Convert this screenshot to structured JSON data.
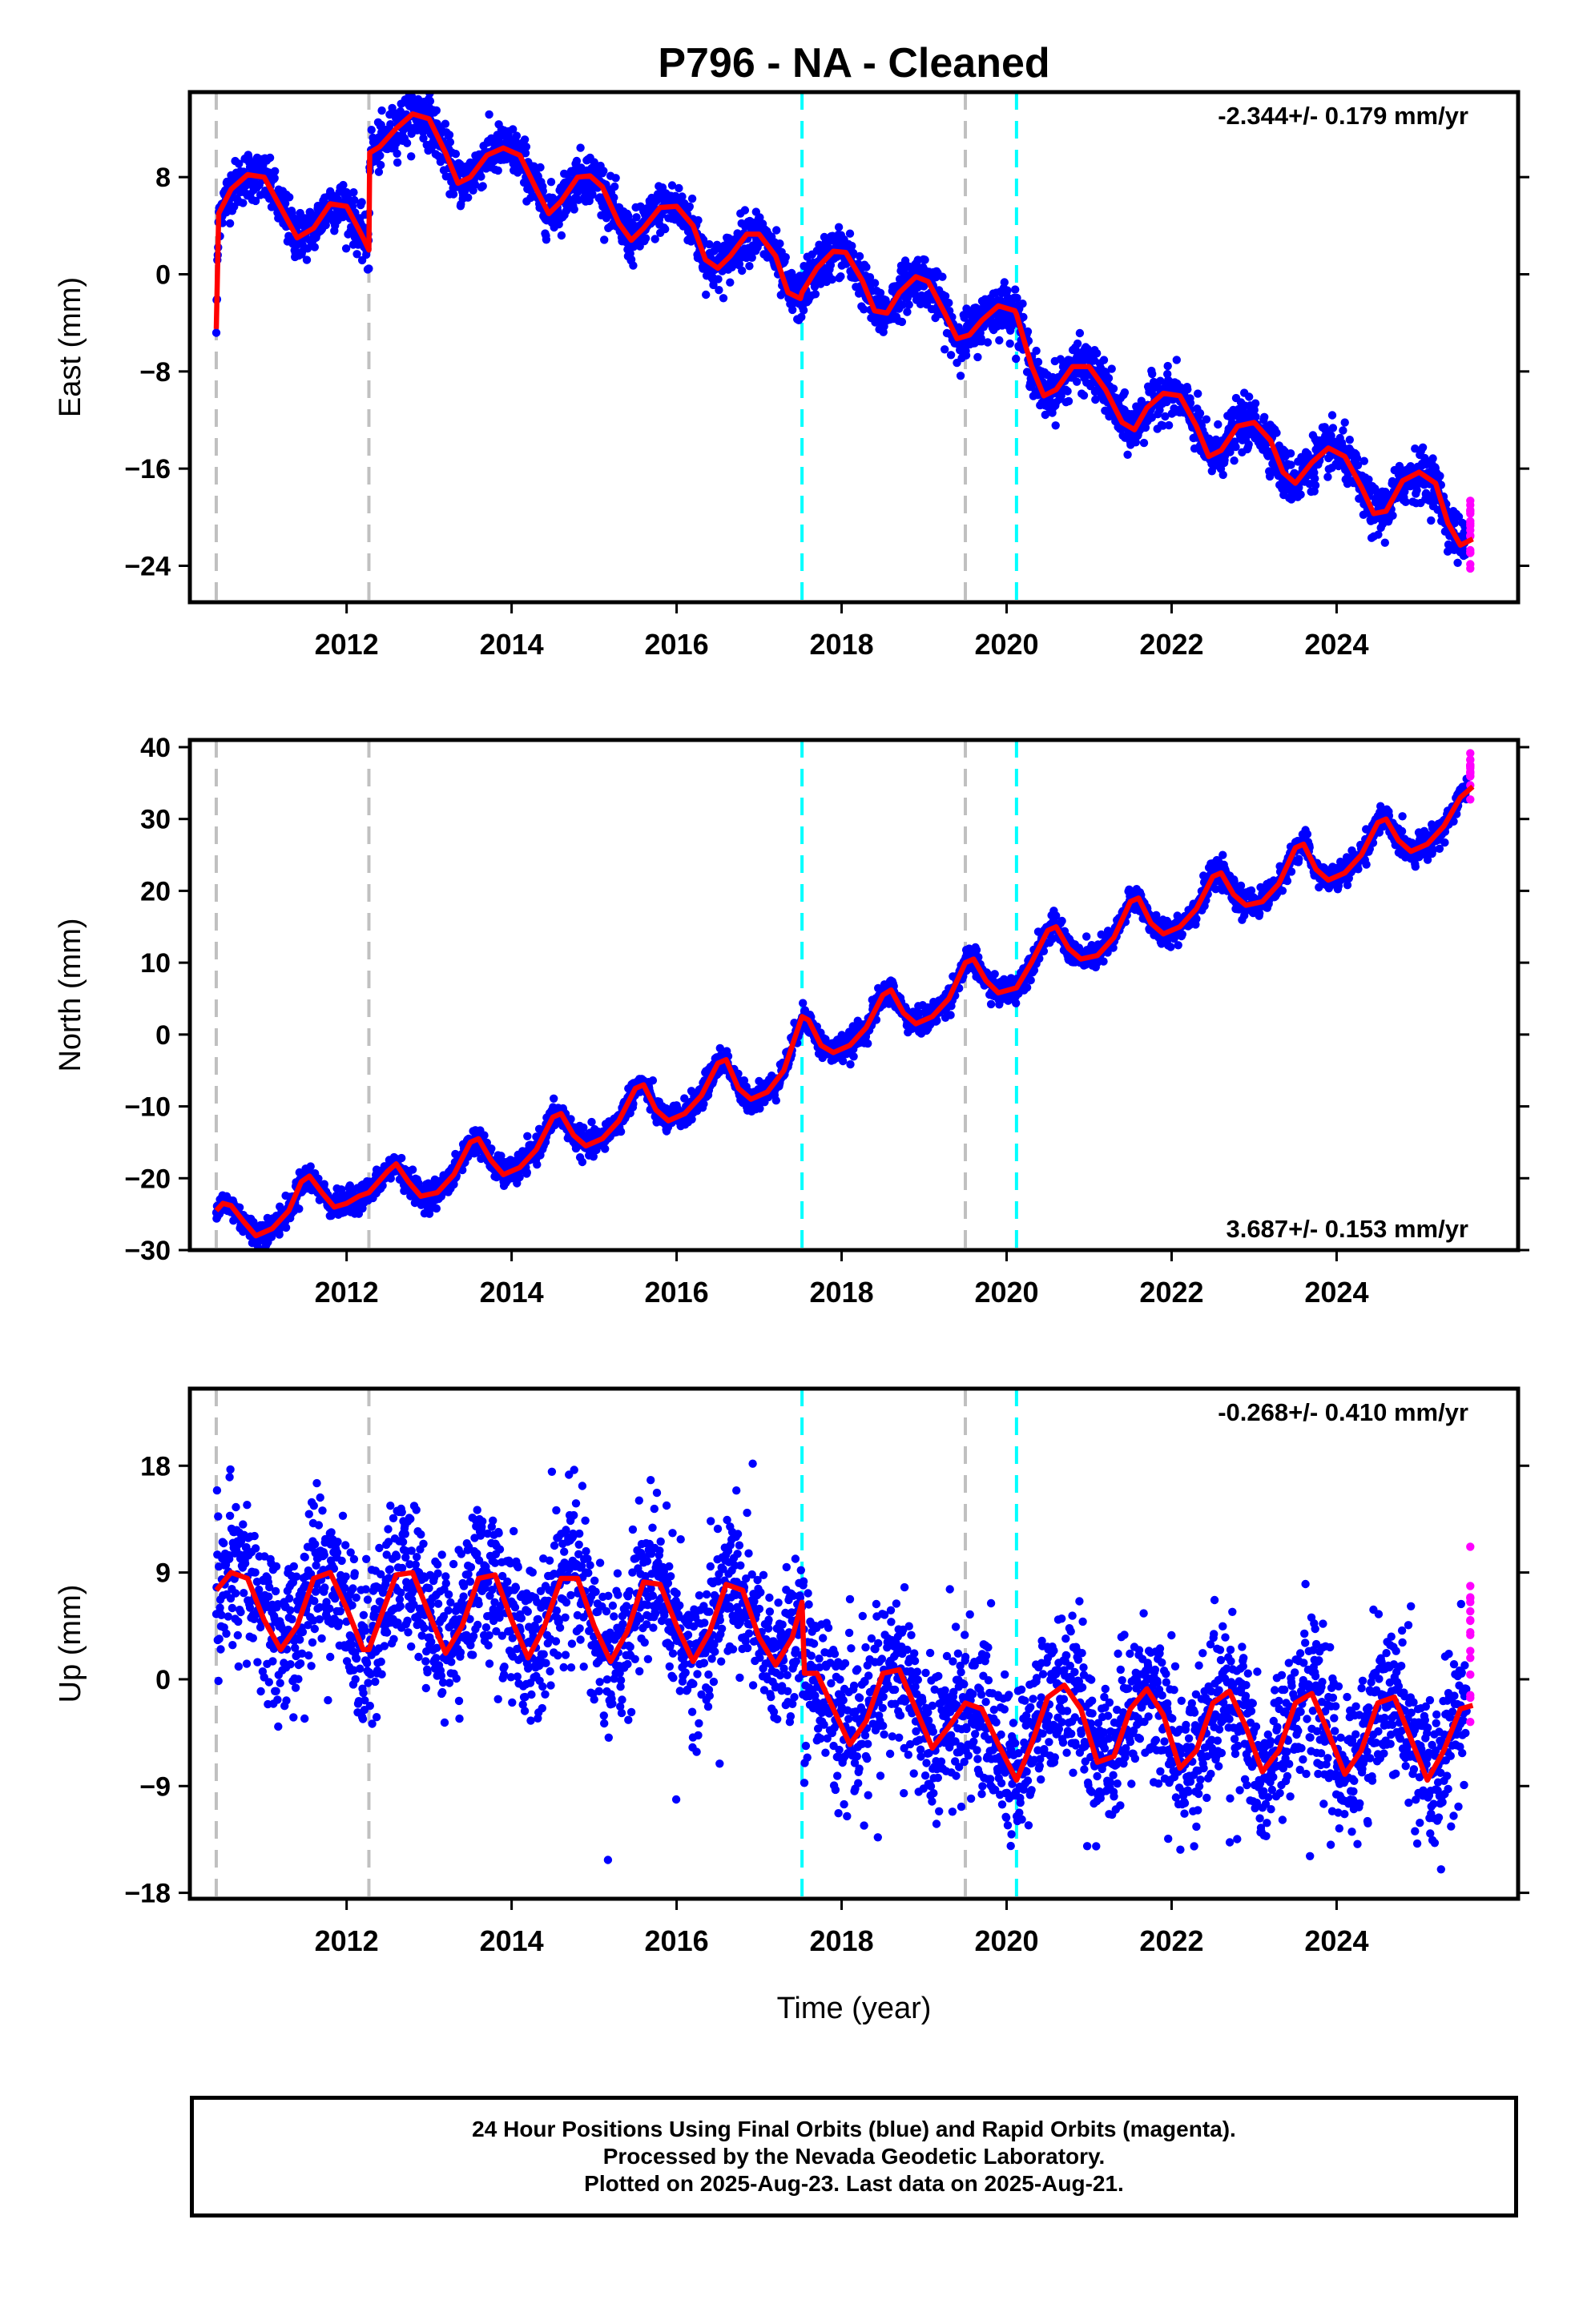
{
  "chart_data": {
    "title": "P796  - NA - Cleaned",
    "xlabel": "Time (year)",
    "xlim": [
      2010.1,
      2026.2
    ],
    "xticks": [
      "2012",
      "2014",
      "2016",
      "2018",
      "2020",
      "2022",
      "2024"
    ],
    "xtick_values": [
      2012,
      2014,
      2016,
      2018,
      2020,
      2022,
      2024
    ],
    "gray_lines": [
      2010.42,
      2012.27,
      2019.5
    ],
    "cyan_lines": [
      2017.52,
      2020.12
    ],
    "colors": {
      "final": "#0000ff",
      "rapid": "#ff00ff",
      "model": "#ff0000",
      "gray": "#c0c0c0",
      "cyan": "#00ffff"
    },
    "panels": [
      {
        "type": "scatter",
        "ylabel": "East (mm)",
        "ylim": [
          -27,
          15
        ],
        "yticks": [
          "8",
          "0",
          "−8",
          "−16",
          "−24"
        ],
        "ytick_values": [
          8,
          0,
          -8,
          -16,
          -24
        ],
        "rate": "-2.344+/- 0.179 mm/yr",
        "rate_position": "top-right",
        "model_points": [
          [
            2010.42,
            -4.5
          ],
          [
            2010.45,
            5
          ],
          [
            2010.6,
            7
          ],
          [
            2010.8,
            8.2
          ],
          [
            2011.0,
            8.0
          ],
          [
            2011.2,
            5.5
          ],
          [
            2011.4,
            3.0
          ],
          [
            2011.6,
            3.8
          ],
          [
            2011.8,
            5.8
          ],
          [
            2012.0,
            5.6
          ],
          [
            2012.2,
            3.0
          ],
          [
            2012.27,
            2.0
          ],
          [
            2012.28,
            10.0
          ],
          [
            2012.4,
            10.5
          ],
          [
            2012.6,
            12.0
          ],
          [
            2012.8,
            13.2
          ],
          [
            2013.0,
            12.8
          ],
          [
            2013.2,
            10.0
          ],
          [
            2013.35,
            7.5
          ],
          [
            2013.5,
            8.0
          ],
          [
            2013.7,
            9.8
          ],
          [
            2013.9,
            10.4
          ],
          [
            2014.1,
            9.8
          ],
          [
            2014.3,
            7.0
          ],
          [
            2014.45,
            5.0
          ],
          [
            2014.6,
            6.0
          ],
          [
            2014.8,
            8.0
          ],
          [
            2014.95,
            8.1
          ],
          [
            2015.1,
            7.2
          ],
          [
            2015.3,
            4.2
          ],
          [
            2015.45,
            2.8
          ],
          [
            2015.6,
            3.8
          ],
          [
            2015.8,
            5.5
          ],
          [
            2016.0,
            5.6
          ],
          [
            2016.2,
            4.0
          ],
          [
            2016.35,
            1.2
          ],
          [
            2016.5,
            0.5
          ],
          [
            2016.65,
            1.5
          ],
          [
            2016.85,
            3.3
          ],
          [
            2017.0,
            3.3
          ],
          [
            2017.2,
            1.5
          ],
          [
            2017.35,
            -1.5
          ],
          [
            2017.5,
            -2.0
          ],
          [
            2017.52,
            -1.5
          ],
          [
            2017.7,
            0.5
          ],
          [
            2017.9,
            1.9
          ],
          [
            2018.05,
            1.8
          ],
          [
            2018.25,
            -0.5
          ],
          [
            2018.4,
            -3.0
          ],
          [
            2018.55,
            -3.2
          ],
          [
            2018.7,
            -1.5
          ],
          [
            2018.9,
            -0.2
          ],
          [
            2019.05,
            -0.6
          ],
          [
            2019.25,
            -3.2
          ],
          [
            2019.4,
            -5.3
          ],
          [
            2019.55,
            -5.0
          ],
          [
            2019.7,
            -3.8
          ],
          [
            2019.9,
            -2.6
          ],
          [
            2020.1,
            -3.0
          ],
          [
            2020.12,
            -3.3
          ],
          [
            2020.3,
            -7.5
          ],
          [
            2020.45,
            -10.0
          ],
          [
            2020.6,
            -9.5
          ],
          [
            2020.8,
            -7.6
          ],
          [
            2021.0,
            -7.6
          ],
          [
            2021.2,
            -9.5
          ],
          [
            2021.4,
            -12.2
          ],
          [
            2021.55,
            -12.8
          ],
          [
            2021.7,
            -11.0
          ],
          [
            2021.9,
            -9.8
          ],
          [
            2022.1,
            -10.0
          ],
          [
            2022.3,
            -12.5
          ],
          [
            2022.45,
            -15.0
          ],
          [
            2022.6,
            -14.5
          ],
          [
            2022.8,
            -12.5
          ],
          [
            2023.0,
            -12.2
          ],
          [
            2023.2,
            -13.7
          ],
          [
            2023.35,
            -16.3
          ],
          [
            2023.5,
            -17.2
          ],
          [
            2023.7,
            -15.5
          ],
          [
            2023.9,
            -14.3
          ],
          [
            2024.1,
            -15.0
          ],
          [
            2024.3,
            -17.5
          ],
          [
            2024.45,
            -19.7
          ],
          [
            2024.6,
            -19.5
          ],
          [
            2024.8,
            -17.0
          ],
          [
            2025.0,
            -16.3
          ],
          [
            2025.2,
            -17.2
          ],
          [
            2025.35,
            -20.5
          ],
          [
            2025.5,
            -22.3
          ],
          [
            2025.65,
            -21.8
          ]
        ]
      },
      {
        "type": "scatter",
        "ylabel": "North (mm)",
        "ylim": [
          -30,
          41
        ],
        "yticks": [
          "40",
          "30",
          "20",
          "10",
          "0",
          "−10",
          "−20",
          "−30"
        ],
        "ytick_values": [
          40,
          30,
          20,
          10,
          0,
          -10,
          -20,
          -30
        ],
        "rate": "3.687+/- 0.153 mm/yr",
        "rate_position": "bottom-right",
        "model_points": [
          [
            2010.42,
            -24.5
          ],
          [
            2010.5,
            -23.5
          ],
          [
            2010.6,
            -23.8
          ],
          [
            2010.75,
            -26.0
          ],
          [
            2010.9,
            -28.0
          ],
          [
            2011.1,
            -27.0
          ],
          [
            2011.3,
            -24.5
          ],
          [
            2011.45,
            -20.5
          ],
          [
            2011.55,
            -19.7
          ],
          [
            2011.7,
            -22.0
          ],
          [
            2011.85,
            -24.0
          ],
          [
            2012.0,
            -23.5
          ],
          [
            2012.15,
            -22.5
          ],
          [
            2012.27,
            -22.0
          ],
          [
            2012.5,
            -19.0
          ],
          [
            2012.6,
            -18.0
          ],
          [
            2012.75,
            -20.5
          ],
          [
            2012.9,
            -22.5
          ],
          [
            2013.1,
            -22.0
          ],
          [
            2013.3,
            -19.5
          ],
          [
            2013.5,
            -15.0
          ],
          [
            2013.6,
            -14.5
          ],
          [
            2013.75,
            -17.5
          ],
          [
            2013.9,
            -19.5
          ],
          [
            2014.1,
            -18.5
          ],
          [
            2014.3,
            -16.0
          ],
          [
            2014.5,
            -11.5
          ],
          [
            2014.6,
            -11.0
          ],
          [
            2014.75,
            -14.0
          ],
          [
            2014.9,
            -15.5
          ],
          [
            2015.1,
            -14.5
          ],
          [
            2015.3,
            -12.0
          ],
          [
            2015.5,
            -7.5
          ],
          [
            2015.6,
            -7.0
          ],
          [
            2015.75,
            -10.5
          ],
          [
            2015.9,
            -12.0
          ],
          [
            2016.1,
            -11.0
          ],
          [
            2016.3,
            -8.5
          ],
          [
            2016.5,
            -4.0
          ],
          [
            2016.6,
            -3.5
          ],
          [
            2016.75,
            -7.5
          ],
          [
            2016.9,
            -9.0
          ],
          [
            2017.1,
            -8.0
          ],
          [
            2017.3,
            -5.0
          ],
          [
            2017.52,
            2.5
          ],
          [
            2017.6,
            2.0
          ],
          [
            2017.75,
            -1.5
          ],
          [
            2017.9,
            -2.5
          ],
          [
            2018.1,
            -1.5
          ],
          [
            2018.3,
            1.0
          ],
          [
            2018.5,
            5.5
          ],
          [
            2018.6,
            6.2
          ],
          [
            2018.75,
            3.0
          ],
          [
            2018.9,
            1.5
          ],
          [
            2019.1,
            2.5
          ],
          [
            2019.3,
            5.0
          ],
          [
            2019.5,
            10.0
          ],
          [
            2019.6,
            10.5
          ],
          [
            2019.75,
            7.5
          ],
          [
            2019.9,
            5.8
          ],
          [
            2020.12,
            6.5
          ],
          [
            2020.3,
            10.0
          ],
          [
            2020.5,
            14.5
          ],
          [
            2020.6,
            15.0
          ],
          [
            2020.75,
            12.0
          ],
          [
            2020.9,
            10.5
          ],
          [
            2021.1,
            11.0
          ],
          [
            2021.3,
            13.5
          ],
          [
            2021.5,
            18.5
          ],
          [
            2021.6,
            19.0
          ],
          [
            2021.75,
            15.5
          ],
          [
            2021.9,
            14.0
          ],
          [
            2022.1,
            15.0
          ],
          [
            2022.3,
            17.5
          ],
          [
            2022.5,
            22.0
          ],
          [
            2022.6,
            22.5
          ],
          [
            2022.75,
            19.5
          ],
          [
            2022.9,
            18.0
          ],
          [
            2023.1,
            18.5
          ],
          [
            2023.3,
            21.0
          ],
          [
            2023.5,
            26.0
          ],
          [
            2023.6,
            26.5
          ],
          [
            2023.75,
            23.0
          ],
          [
            2023.9,
            21.5
          ],
          [
            2024.1,
            22.5
          ],
          [
            2024.3,
            25.0
          ],
          [
            2024.5,
            29.5
          ],
          [
            2024.6,
            30.0
          ],
          [
            2024.75,
            27.0
          ],
          [
            2024.9,
            25.5
          ],
          [
            2025.1,
            26.5
          ],
          [
            2025.3,
            29.0
          ],
          [
            2025.5,
            33.0
          ],
          [
            2025.65,
            34.5
          ]
        ]
      },
      {
        "type": "scatter",
        "ylabel": "Up (mm)",
        "ylim": [
          -18.5,
          24.5
        ],
        "yticks": [
          "18",
          "9",
          "0",
          "−9",
          "−18"
        ],
        "ytick_values": [
          18,
          9,
          0,
          -9,
          -18
        ],
        "rate": "-0.268+/- 0.410 mm/yr",
        "rate_position": "top-right",
        "model_points": [
          [
            2010.42,
            7.5
          ],
          [
            2010.6,
            9.0
          ],
          [
            2010.8,
            8.5
          ],
          [
            2011.0,
            5.0
          ],
          [
            2011.2,
            2.5
          ],
          [
            2011.4,
            4.5
          ],
          [
            2011.6,
            8.5
          ],
          [
            2011.8,
            9.0
          ],
          [
            2012.0,
            6.0
          ],
          [
            2012.2,
            2.5
          ],
          [
            2012.27,
            2.5
          ],
          [
            2012.4,
            5.0
          ],
          [
            2012.6,
            8.8
          ],
          [
            2012.8,
            9.0
          ],
          [
            2013.0,
            5.5
          ],
          [
            2013.2,
            2.2
          ],
          [
            2013.4,
            4.5
          ],
          [
            2013.6,
            8.5
          ],
          [
            2013.8,
            8.8
          ],
          [
            2014.0,
            5.0
          ],
          [
            2014.2,
            1.8
          ],
          [
            2014.4,
            4.5
          ],
          [
            2014.6,
            8.5
          ],
          [
            2014.8,
            8.5
          ],
          [
            2015.0,
            4.5
          ],
          [
            2015.2,
            1.5
          ],
          [
            2015.4,
            4.0
          ],
          [
            2015.6,
            8.2
          ],
          [
            2015.8,
            8.0
          ],
          [
            2016.0,
            4.5
          ],
          [
            2016.2,
            1.5
          ],
          [
            2016.4,
            4.0
          ],
          [
            2016.6,
            8.0
          ],
          [
            2016.8,
            7.5
          ],
          [
            2017.0,
            3.5
          ],
          [
            2017.2,
            1.2
          ],
          [
            2017.4,
            3.5
          ],
          [
            2017.52,
            6.5
          ],
          [
            2017.55,
            0.5
          ],
          [
            2017.7,
            0.5
          ],
          [
            2017.9,
            -2.5
          ],
          [
            2018.1,
            -5.5
          ],
          [
            2018.3,
            -3.5
          ],
          [
            2018.5,
            0.5
          ],
          [
            2018.7,
            0.8
          ],
          [
            2018.9,
            -2.5
          ],
          [
            2019.1,
            -5.8
          ],
          [
            2019.3,
            -4.0
          ],
          [
            2019.5,
            -2.0
          ],
          [
            2019.7,
            -2.5
          ],
          [
            2019.9,
            -5.5
          ],
          [
            2020.12,
            -8.5
          ],
          [
            2020.3,
            -5.5
          ],
          [
            2020.5,
            -1.5
          ],
          [
            2020.7,
            -0.5
          ],
          [
            2020.9,
            -2.5
          ],
          [
            2021.1,
            -7.0
          ],
          [
            2021.3,
            -6.5
          ],
          [
            2021.5,
            -2.5
          ],
          [
            2021.7,
            -0.8
          ],
          [
            2021.9,
            -3.0
          ],
          [
            2022.1,
            -7.5
          ],
          [
            2022.3,
            -6.0
          ],
          [
            2022.5,
            -2.0
          ],
          [
            2022.7,
            -1.0
          ],
          [
            2022.9,
            -4.0
          ],
          [
            2023.1,
            -7.8
          ],
          [
            2023.3,
            -6.0
          ],
          [
            2023.5,
            -2.0
          ],
          [
            2023.7,
            -1.2
          ],
          [
            2023.9,
            -4.5
          ],
          [
            2024.1,
            -8.0
          ],
          [
            2024.3,
            -6.0
          ],
          [
            2024.5,
            -2.0
          ],
          [
            2024.7,
            -1.5
          ],
          [
            2024.9,
            -5.0
          ],
          [
            2025.1,
            -8.5
          ],
          [
            2025.3,
            -6.0
          ],
          [
            2025.5,
            -2.5
          ],
          [
            2025.65,
            -2.2
          ]
        ]
      }
    ]
  },
  "footer": {
    "line1": "24 Hour Positions Using Final Orbits (blue) and Rapid Orbits (magenta).",
    "line2": "Processed by the Nevada Geodetic Laboratory.",
    "line3": "Plotted on 2025-Aug-23. Last data on 2025-Aug-21."
  }
}
